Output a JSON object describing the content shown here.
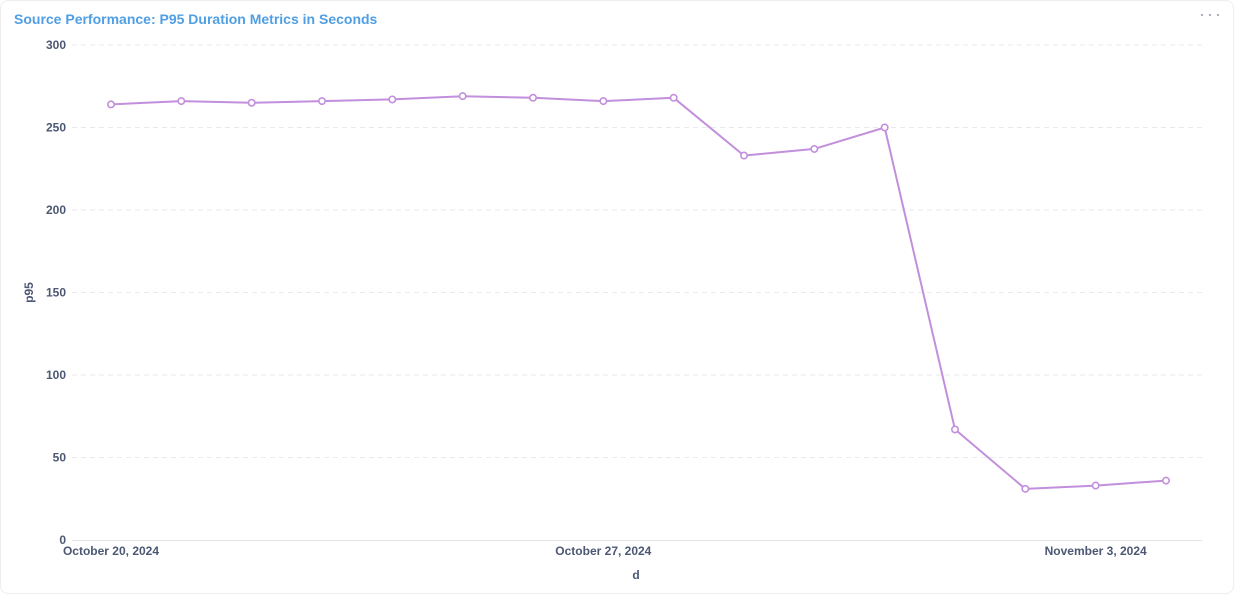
{
  "card": {
    "title": "Source Performance: P95 Duration Metrics in Seconds",
    "menu_icon": "more-horizontal-icon"
  },
  "colors": {
    "series": "#c28fdc",
    "title": "#509ee3",
    "grid": "#e8eaed",
    "axis_text": "#4c5773"
  },
  "chart_data": {
    "type": "line",
    "title": "Source Performance: P95 Duration Metrics in Seconds",
    "xlabel": "d",
    "ylabel": "p95",
    "ylim": [
      0,
      300
    ],
    "yticks": [
      0,
      50,
      100,
      150,
      200,
      250,
      300
    ],
    "grid": true,
    "x": [
      "2024-10-20",
      "2024-10-21",
      "2024-10-22",
      "2024-10-23",
      "2024-10-24",
      "2024-10-25",
      "2024-10-26",
      "2024-10-27",
      "2024-10-28",
      "2024-10-29",
      "2024-10-30",
      "2024-10-31",
      "2024-11-01",
      "2024-11-02",
      "2024-11-03",
      "2024-11-04"
    ],
    "xtick_labels": [
      {
        "x": "2024-10-20",
        "label": "October 20, 2024"
      },
      {
        "x": "2024-10-27",
        "label": "October 27, 2024"
      },
      {
        "x": "2024-11-03",
        "label": "November 3, 2024"
      }
    ],
    "series": [
      {
        "values": [
          264,
          266,
          265,
          266,
          267,
          269,
          268,
          266,
          268,
          233,
          237,
          250,
          67,
          31,
          33,
          36
        ]
      }
    ]
  }
}
